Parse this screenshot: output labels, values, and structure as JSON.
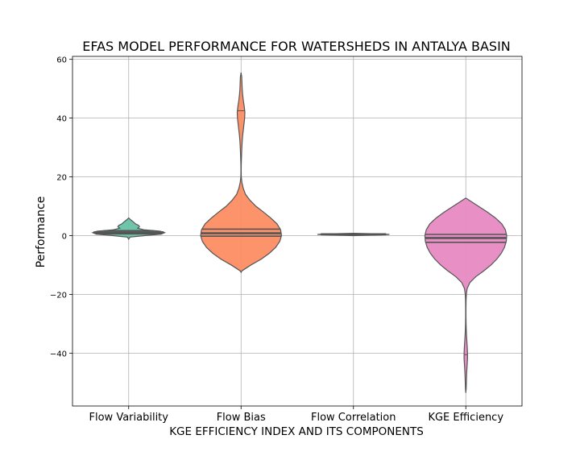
{
  "chart_data": {
    "type": "violin",
    "title": "EFAS MODEL PERFORMANCE FOR WATERSHEDS IN ANTALYA BASIN",
    "xlabel": "KGE EFFICIENCY INDEX AND ITS COMPONENTS",
    "ylabel": "Performance",
    "ylim": [
      -58,
      61
    ],
    "yticks": [
      -40,
      -20,
      0,
      20,
      40,
      60
    ],
    "ytick_labels": [
      "−40",
      "−20",
      "0",
      "20",
      "40",
      "60"
    ],
    "grid": true,
    "inner": "quartile",
    "categories": [
      "Flow Variability",
      "Flow Bias",
      "Flow Correlation",
      "KGE Efficiency"
    ],
    "colors": [
      "#66c2a5",
      "#fc8d62",
      "#8da0cb",
      "#e78ac3"
    ],
    "violins": [
      {
        "category": "Flow Variability",
        "color": "#66c2a5",
        "profile": [
          [
            -1.2,
            0.0
          ],
          [
            -0.5,
            0.03
          ],
          [
            0.0,
            0.35
          ],
          [
            0.5,
            0.72
          ],
          [
            1.0,
            0.8
          ],
          [
            1.5,
            0.7
          ],
          [
            2.0,
            0.34
          ],
          [
            2.5,
            0.2
          ],
          [
            3.0,
            0.24
          ],
          [
            3.5,
            0.22
          ],
          [
            4.0,
            0.15
          ],
          [
            4.7,
            0.1
          ],
          [
            5.3,
            0.05
          ],
          [
            6.0,
            0.0
          ]
        ],
        "quartiles": [
          0.6,
          1.1,
          1.7
        ]
      },
      {
        "category": "Flow Bias",
        "color": "#fc8d62",
        "profile": [
          [
            -12.5,
            0.0
          ],
          [
            -12.0,
            0.02
          ],
          [
            -10,
            0.22
          ],
          [
            -8,
            0.45
          ],
          [
            -6,
            0.63
          ],
          [
            -4,
            0.77
          ],
          [
            -2,
            0.86
          ],
          [
            0,
            0.9
          ],
          [
            2,
            0.88
          ],
          [
            4,
            0.8
          ],
          [
            6,
            0.66
          ],
          [
            8,
            0.5
          ],
          [
            10,
            0.33
          ],
          [
            12,
            0.2
          ],
          [
            14,
            0.1
          ],
          [
            16,
            0.05
          ],
          [
            18,
            0.02
          ],
          [
            20,
            0.005
          ],
          [
            22,
            0.003
          ],
          [
            24,
            0.004
          ],
          [
            26,
            0.008
          ],
          [
            28,
            0.012
          ],
          [
            30,
            0.018
          ],
          [
            32,
            0.025
          ],
          [
            34,
            0.035
          ],
          [
            36,
            0.05
          ],
          [
            38,
            0.065
          ],
          [
            40,
            0.08
          ],
          [
            42,
            0.085
          ],
          [
            44,
            0.07
          ],
          [
            46,
            0.05
          ],
          [
            48,
            0.035
          ],
          [
            50,
            0.025
          ],
          [
            52,
            0.02
          ],
          [
            54,
            0.015
          ],
          [
            55.5,
            0.0
          ]
        ],
        "quartiles": [
          -0.2,
          0.8,
          2.2
        ],
        "extra_line": 42.5
      },
      {
        "category": "Flow Correlation",
        "color": "#8da0cb",
        "profile": [
          [
            0.0,
            0.0
          ],
          [
            0.2,
            0.5
          ],
          [
            0.4,
            0.8
          ],
          [
            0.6,
            0.5
          ],
          [
            0.8,
            0.0
          ]
        ],
        "quartiles": [
          0.3,
          0.45,
          0.6
        ]
      },
      {
        "category": "KGE Efficiency",
        "color": "#e78ac3",
        "profile": [
          [
            -53.5,
            0.0
          ],
          [
            -52,
            0.008
          ],
          [
            -50,
            0.012
          ],
          [
            -48,
            0.016
          ],
          [
            -46,
            0.022
          ],
          [
            -44,
            0.03
          ],
          [
            -42,
            0.038
          ],
          [
            -40,
            0.038
          ],
          [
            -38,
            0.032
          ],
          [
            -36,
            0.024
          ],
          [
            -34,
            0.016
          ],
          [
            -32,
            0.01
          ],
          [
            -30,
            0.006
          ],
          [
            -28,
            0.004
          ],
          [
            -26,
            0.003
          ],
          [
            -24,
            0.004
          ],
          [
            -22,
            0.006
          ],
          [
            -20,
            0.012
          ],
          [
            -18,
            0.03
          ],
          [
            -16,
            0.09
          ],
          [
            -14,
            0.22
          ],
          [
            -12,
            0.4
          ],
          [
            -10,
            0.56
          ],
          [
            -8,
            0.69
          ],
          [
            -6,
            0.79
          ],
          [
            -4,
            0.86
          ],
          [
            -2,
            0.9
          ],
          [
            0,
            0.91
          ],
          [
            2,
            0.88
          ],
          [
            4,
            0.8
          ],
          [
            6,
            0.66
          ],
          [
            8,
            0.48
          ],
          [
            10,
            0.28
          ],
          [
            12,
            0.08
          ],
          [
            12.8,
            0.0
          ]
        ],
        "quartiles": [
          -2.3,
          -0.8,
          0.4
        ],
        "extra_line": -40.5
      }
    ]
  }
}
